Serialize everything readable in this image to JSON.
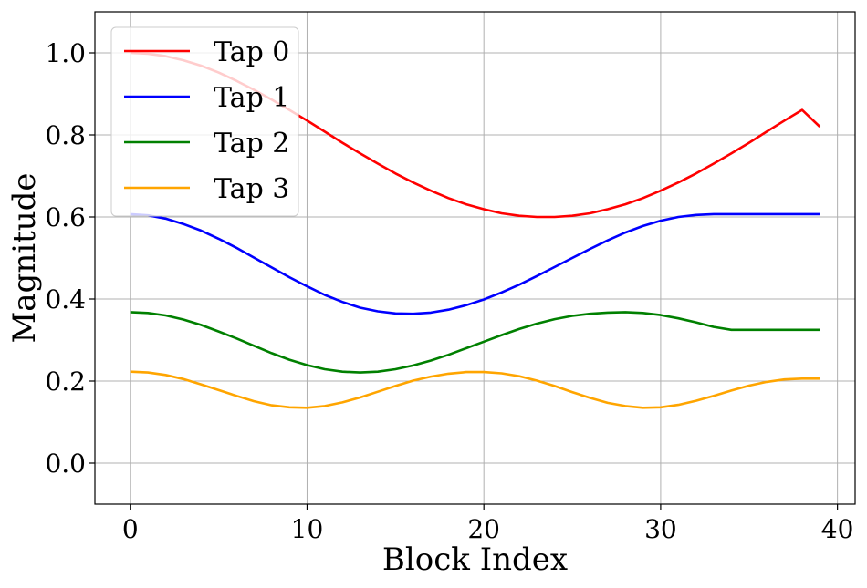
{
  "chart_data": {
    "type": "line",
    "title": "",
    "xlabel": "Block Index",
    "ylabel": "Magnitude",
    "xlim": [
      -2,
      41
    ],
    "ylim": [
      -0.1,
      1.1
    ],
    "xticks": [
      0,
      10,
      20,
      30,
      40
    ],
    "yticks": [
      0.0,
      0.2,
      0.4,
      0.6,
      0.8,
      1.0
    ],
    "xtick_labels": [
      "0",
      "10",
      "20",
      "30",
      "40"
    ],
    "ytick_labels": [
      "0.0",
      "0.2",
      "0.4",
      "0.6",
      "0.8",
      "1.0"
    ],
    "grid": true,
    "legend_position": "top-left",
    "x": [
      0,
      1,
      2,
      3,
      4,
      5,
      6,
      7,
      8,
      9,
      10,
      11,
      12,
      13,
      14,
      15,
      16,
      17,
      18,
      19,
      20,
      21,
      22,
      23,
      24,
      25,
      26,
      27,
      28,
      29,
      30,
      31,
      32,
      33,
      34,
      35,
      36,
      37,
      38,
      39
    ],
    "series": [
      {
        "name": "Tap 0",
        "color": "#ff0000",
        "values": [
          1.0,
          0.998,
          0.992,
          0.982,
          0.969,
          0.952,
          0.932,
          0.91,
          0.886,
          0.861,
          0.835,
          0.808,
          0.781,
          0.755,
          0.73,
          0.706,
          0.684,
          0.664,
          0.646,
          0.631,
          0.619,
          0.609,
          0.603,
          0.6,
          0.6,
          0.603,
          0.609,
          0.619,
          0.631,
          0.646,
          0.664,
          0.684,
          0.706,
          0.73,
          0.755,
          0.781,
          0.808,
          0.835,
          0.861,
          0.82
        ]
      },
      {
        "name": "Tap 1",
        "color": "#0000ff",
        "values": [
          0.607,
          0.604,
          0.596,
          0.583,
          0.567,
          0.547,
          0.525,
          0.501,
          0.477,
          0.453,
          0.431,
          0.41,
          0.393,
          0.379,
          0.37,
          0.365,
          0.364,
          0.367,
          0.374,
          0.385,
          0.399,
          0.416,
          0.435,
          0.456,
          0.478,
          0.5,
          0.522,
          0.543,
          0.562,
          0.578,
          0.591,
          0.6,
          0.605,
          0.607,
          0.607,
          0.607,
          0.607,
          0.607,
          0.607,
          0.607
        ]
      },
      {
        "name": "Tap 2",
        "color": "#008000",
        "values": [
          0.368,
          0.366,
          0.36,
          0.35,
          0.337,
          0.321,
          0.304,
          0.286,
          0.268,
          0.252,
          0.239,
          0.229,
          0.223,
          0.221,
          0.223,
          0.229,
          0.238,
          0.25,
          0.264,
          0.28,
          0.296,
          0.312,
          0.327,
          0.34,
          0.351,
          0.359,
          0.364,
          0.367,
          0.368,
          0.366,
          0.361,
          0.353,
          0.343,
          0.332,
          0.325,
          0.325,
          0.325,
          0.325,
          0.325,
          0.325
        ]
      },
      {
        "name": "Tap 3",
        "color": "#ffa500",
        "values": [
          0.223,
          0.221,
          0.215,
          0.205,
          0.192,
          0.178,
          0.164,
          0.151,
          0.141,
          0.136,
          0.135,
          0.139,
          0.148,
          0.16,
          0.174,
          0.188,
          0.201,
          0.211,
          0.218,
          0.222,
          0.222,
          0.219,
          0.212,
          0.201,
          0.188,
          0.173,
          0.159,
          0.147,
          0.139,
          0.135,
          0.136,
          0.142,
          0.152,
          0.164,
          0.177,
          0.189,
          0.198,
          0.204,
          0.206,
          0.206
        ]
      }
    ]
  }
}
